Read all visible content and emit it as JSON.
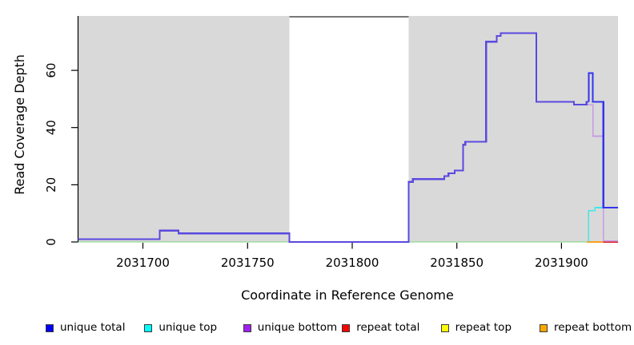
{
  "figure": {
    "background": "#ffffff",
    "region_color": "#d9d9d9"
  },
  "chart_data": {
    "type": "line",
    "style": "step",
    "title": "",
    "xlabel": "Coordinate in Reference Genome",
    "ylabel": "Read Coverage Depth",
    "xlim": [
      2031669,
      2031927
    ],
    "ylim": [
      0,
      79
    ],
    "x_ticks": [
      2031700,
      2031750,
      2031800,
      2031850,
      2031900
    ],
    "y_ticks": [
      0,
      20,
      40,
      60
    ],
    "grid": false,
    "legend_position": "bottom",
    "plot_bg": "#ffffff",
    "shaded_regions": [
      {
        "name": "left-gray-region",
        "x0": 2031669,
        "x1": 2031770,
        "color": "#d9d9d9"
      },
      {
        "name": "right-gray-region",
        "x0": 2031827,
        "x1": 2031927,
        "color": "#d9d9d9"
      }
    ],
    "gap_marker": {
      "name": "gap-top-bar",
      "x0": 2031770,
      "x1": 2031827,
      "color": "#777777"
    },
    "series": [
      {
        "name": "unique total",
        "color": "#0000ff",
        "points": [
          [
            2031669,
            1
          ],
          [
            2031708,
            4
          ],
          [
            2031717,
            3
          ],
          [
            2031770,
            0
          ],
          [
            2031827,
            21
          ],
          [
            2031829,
            22
          ],
          [
            2031844,
            23
          ],
          [
            2031846,
            24
          ],
          [
            2031849,
            25
          ],
          [
            2031853,
            34
          ],
          [
            2031854,
            35
          ],
          [
            2031864,
            70
          ],
          [
            2031869,
            72
          ],
          [
            2031871,
            73
          ],
          [
            2031888,
            49
          ],
          [
            2031906,
            48
          ],
          [
            2031912,
            49
          ],
          [
            2031913,
            59
          ],
          [
            2031915,
            49
          ],
          [
            2031920,
            12
          ],
          [
            2031927,
            12
          ]
        ]
      },
      {
        "name": "unique top",
        "color": "#00ffff",
        "points": [
          [
            2031669,
            0
          ],
          [
            2031913,
            11
          ],
          [
            2031916,
            12
          ],
          [
            2031927,
            12
          ]
        ]
      },
      {
        "name": "unique bottom",
        "color": "#a020f0",
        "points": [
          [
            2031669,
            1
          ],
          [
            2031708,
            4
          ],
          [
            2031717,
            3
          ],
          [
            2031770,
            0
          ],
          [
            2031827,
            21
          ],
          [
            2031829,
            22
          ],
          [
            2031844,
            23
          ],
          [
            2031846,
            24
          ],
          [
            2031849,
            25
          ],
          [
            2031853,
            34
          ],
          [
            2031854,
            35
          ],
          [
            2031864,
            70
          ],
          [
            2031869,
            72
          ],
          [
            2031871,
            73
          ],
          [
            2031888,
            49
          ],
          [
            2031906,
            48
          ],
          [
            2031913,
            48
          ],
          [
            2031915,
            37
          ],
          [
            2031920,
            0
          ],
          [
            2031927,
            0
          ]
        ]
      },
      {
        "name": "repeat total",
        "color": "#ff0000",
        "points": [
          [
            2031669,
            0
          ],
          [
            2031927,
            0
          ]
        ]
      },
      {
        "name": "repeat top",
        "color": "#ffff00",
        "points": [
          [
            2031669,
            0
          ],
          [
            2031927,
            0
          ]
        ]
      },
      {
        "name": "repeat bottom",
        "color": "#ffa500",
        "points": [
          [
            2031669,
            0
          ],
          [
            2031927,
            0
          ]
        ]
      }
    ],
    "render_layers": [
      {
        "name": "zero-overlap-blend-line",
        "color": "#7fd67f",
        "width": 1.4,
        "steps": [
          [
            2031669,
            0
          ],
          [
            2031912,
            0
          ]
        ]
      },
      {
        "name": "repeat-bottom-visible-line",
        "color": "#ffa020",
        "width": 2,
        "steps": [
          [
            2031912,
            0
          ],
          [
            2031920,
            0
          ]
        ]
      },
      {
        "name": "repeat-total-visible-line",
        "color": "#e02020",
        "width": 1.6,
        "steps": [
          [
            2031920,
            0
          ],
          [
            2031927,
            0
          ]
        ]
      },
      {
        "name": "unique-bottom-visible-line",
        "color": "#c79ae6",
        "width": 1.6,
        "steps": [
          [
            2031906,
            48
          ],
          [
            2031915,
            37
          ],
          [
            2031920,
            0.4
          ],
          [
            2031927,
            0.4
          ]
        ]
      },
      {
        "name": "unique-top-visible-line",
        "color": "#45e5e5",
        "width": 1.6,
        "steps": [
          [
            2031913,
            0
          ],
          [
            2031913,
            11
          ],
          [
            2031916,
            12
          ],
          [
            2031927,
            12
          ]
        ]
      },
      {
        "name": "unique-total-main-line",
        "color": "#5a49e0",
        "width": 2.2,
        "steps": [
          [
            2031669,
            1
          ],
          [
            2031708,
            4
          ],
          [
            2031717,
            3
          ],
          [
            2031770,
            0
          ],
          [
            2031827,
            21
          ],
          [
            2031829,
            22
          ],
          [
            2031844,
            23
          ],
          [
            2031846,
            24
          ],
          [
            2031849,
            25
          ],
          [
            2031853,
            34
          ],
          [
            2031854,
            35
          ],
          [
            2031864,
            70
          ],
          [
            2031869,
            72
          ],
          [
            2031871,
            73
          ],
          [
            2031888,
            49
          ],
          [
            2031906,
            48
          ],
          [
            2031912,
            49
          ],
          [
            2031913,
            49
          ]
        ]
      },
      {
        "name": "unique-total-right-line",
        "color": "#3434ee",
        "width": 2.2,
        "steps": [
          [
            2031913,
            49
          ],
          [
            2031913,
            59
          ],
          [
            2031915,
            49
          ],
          [
            2031920,
            12
          ],
          [
            2031927,
            12
          ]
        ]
      }
    ]
  },
  "legend": {
    "items": [
      {
        "label": "unique total",
        "color": "#0000ff"
      },
      {
        "label": "unique top",
        "color": "#00ffff"
      },
      {
        "label": "unique bottom",
        "color": "#a020f0"
      },
      {
        "label": "repeat total",
        "color": "#ff0000"
      },
      {
        "label": "repeat top",
        "color": "#ffff00"
      },
      {
        "label": "repeat bottom",
        "color": "#ffa500"
      }
    ]
  }
}
